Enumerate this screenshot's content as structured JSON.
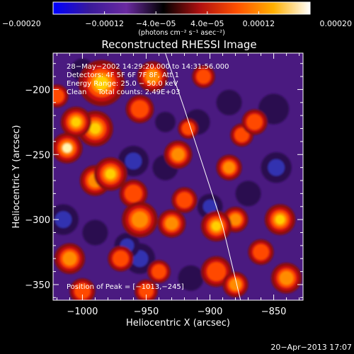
{
  "chart_data": {
    "type": "heatmap",
    "title": "Reconstructed RHESSI Image",
    "xlabel": "Heliocentric X (arcsec)",
    "ylabel": "Heliocentric Y (arcsec)",
    "xlim": [
      -1023,
      -827
    ],
    "ylim": [
      -362,
      -172
    ],
    "x_ticks": [
      -1000,
      -950,
      -900,
      -850
    ],
    "y_ticks": [
      -200,
      -250,
      -300,
      -350
    ],
    "x_tick_labels": [
      "−1000",
      "−950",
      "−900",
      "−850"
    ],
    "y_tick_labels": [
      "−200",
      "−250",
      "−300",
      "−350"
    ],
    "colorbar": {
      "range": [
        -0.0002,
        0.0002
      ],
      "ticks": [
        -0.0002,
        -0.00012,
        -4e-05,
        4e-05,
        0.00012,
        0.0002
      ],
      "tick_labels": [
        "−0.00020",
        "−0.00012",
        "−4.0e−05",
        "4.0e−05",
        "0.00012",
        "0.00020"
      ],
      "units": "(photons cm⁻² s⁻¹ asec⁻²)",
      "colors": [
        "#0000ff",
        "#3a1a9a",
        "#6a2aa0",
        "#000000",
        "#b01010",
        "#ff5000",
        "#ffb000",
        "#ffffff"
      ]
    },
    "info_lines": [
      "28−May−2002 14:29:20.000 to 14:31:56.000",
      "Detectors: 4F 5F 6F 7F 8F, Att 1",
      "Energy Range: 25.0 − 50.0 keV",
      "Clean     Total counts: 2.49E+03"
    ],
    "peak_label": "Position of Peak = [−1013,−245]",
    "peak": {
      "x": -1013,
      "y": -245
    },
    "limb": [
      [
        -935,
        -172
      ],
      [
        -920,
        -215
      ],
      [
        -905,
        -260
      ],
      [
        -890,
        -305
      ],
      [
        -876,
        -362
      ]
    ],
    "blobs": [
      {
        "x": -1012,
        "y": -245,
        "v": 0.0002,
        "r": 12
      },
      {
        "x": -985,
        "y": -195,
        "v": 0.00013,
        "r": 18
      },
      {
        "x": -990,
        "y": -230,
        "v": 0.00012,
        "r": 14
      },
      {
        "x": -1005,
        "y": -225,
        "v": 0.00012,
        "r": 12
      },
      {
        "x": -978,
        "y": -265,
        "v": 0.00014,
        "r": 13
      },
      {
        "x": -990,
        "y": -270,
        "v": 0.0001,
        "r": 12
      },
      {
        "x": -955,
        "y": -215,
        "v": 8e-05,
        "r": 11
      },
      {
        "x": -945,
        "y": -190,
        "v": 9e-05,
        "r": 12
      },
      {
        "x": -955,
        "y": -300,
        "v": 0.0001,
        "r": 14
      },
      {
        "x": -960,
        "y": -280,
        "v": 8e-05,
        "r": 11
      },
      {
        "x": -930,
        "y": -303,
        "v": 0.00011,
        "r": 11
      },
      {
        "x": -925,
        "y": -250,
        "v": 0.0001,
        "r": 11
      },
      {
        "x": -917,
        "y": -230,
        "v": 6e-05,
        "r": 8
      },
      {
        "x": -920,
        "y": -285,
        "v": 8e-05,
        "r": 10
      },
      {
        "x": -895,
        "y": -305,
        "v": 0.00012,
        "r": 12
      },
      {
        "x": -880,
        "y": -300,
        "v": 0.0001,
        "r": 10
      },
      {
        "x": -885,
        "y": -260,
        "v": 9e-05,
        "r": 10
      },
      {
        "x": -875,
        "y": -235,
        "v": 7e-05,
        "r": 9
      },
      {
        "x": -865,
        "y": -225,
        "v": 8e-05,
        "r": 10
      },
      {
        "x": -845,
        "y": -300,
        "v": 0.00013,
        "r": 12
      },
      {
        "x": -840,
        "y": -345,
        "v": 0.0001,
        "r": 12
      },
      {
        "x": -860,
        "y": -325,
        "v": 8e-05,
        "r": 10
      },
      {
        "x": -895,
        "y": -340,
        "v": 8e-05,
        "r": 12
      },
      {
        "x": -880,
        "y": -350,
        "v": 9e-05,
        "r": 10
      },
      {
        "x": -1010,
        "y": -330,
        "v": 9e-05,
        "r": 12
      },
      {
        "x": -1000,
        "y": -355,
        "v": 6e-05,
        "r": 10
      },
      {
        "x": -940,
        "y": -340,
        "v": 6e-05,
        "r": 9
      },
      {
        "x": -950,
        "y": -355,
        "v": 7e-05,
        "r": 9
      },
      {
        "x": -970,
        "y": -330,
        "v": 8e-05,
        "r": 10
      },
      {
        "x": -1020,
        "y": -205,
        "v": 7e-05,
        "r": 9
      },
      {
        "x": -905,
        "y": -190,
        "v": 6e-05,
        "r": 9
      },
      {
        "x": -850,
        "y": -215,
        "v": -6e-05,
        "r": 12
      },
      {
        "x": -848,
        "y": -260,
        "v": -8e-05,
        "r": 12
      },
      {
        "x": -960,
        "y": -255,
        "v": -8e-05,
        "r": 12
      },
      {
        "x": -955,
        "y": -330,
        "v": -0.0001,
        "r": 12
      },
      {
        "x": -965,
        "y": -320,
        "v": -9e-05,
        "r": 10
      },
      {
        "x": -900,
        "y": -290,
        "v": -8e-05,
        "r": 10
      },
      {
        "x": -935,
        "y": -260,
        "v": -6e-05,
        "r": 10
      },
      {
        "x": -910,
        "y": -225,
        "v": -6e-05,
        "r": 10
      },
      {
        "x": -1015,
        "y": -300,
        "v": -7e-05,
        "r": 12
      },
      {
        "x": -990,
        "y": -310,
        "v": -6e-05,
        "r": 10
      },
      {
        "x": -885,
        "y": -210,
        "v": -5e-05,
        "r": 10
      },
      {
        "x": -870,
        "y": -280,
        "v": -6e-05,
        "r": 10
      },
      {
        "x": -915,
        "y": -345,
        "v": -6e-05,
        "r": 10
      },
      {
        "x": -1000,
        "y": -185,
        "v": -5e-05,
        "r": 9
      },
      {
        "x": -935,
        "y": -225,
        "v": -5e-05,
        "r": 8
      }
    ]
  },
  "timestamp": "20−Apr−2013 17:07"
}
